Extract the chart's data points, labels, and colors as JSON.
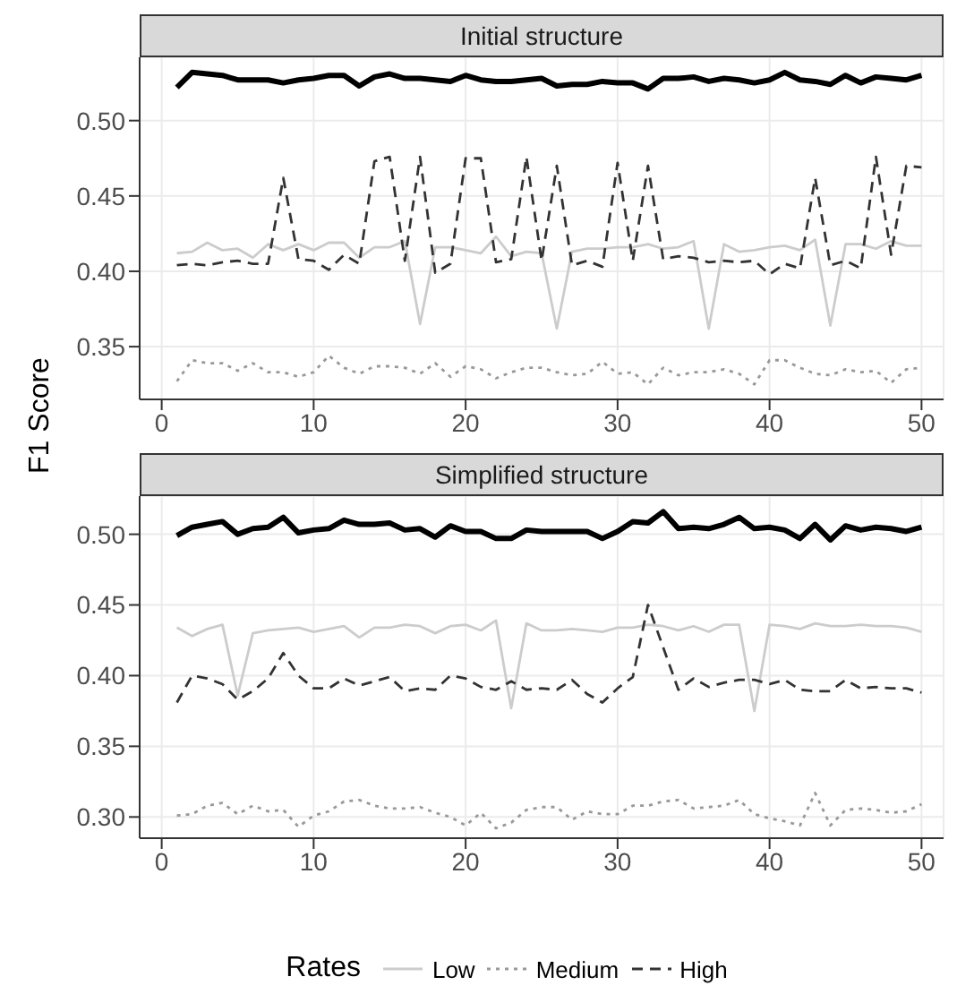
{
  "chart_data": [
    {
      "type": "line",
      "title": "Initial structure",
      "ylabel": "F1 Score",
      "x": [
        1,
        2,
        3,
        4,
        5,
        6,
        7,
        8,
        9,
        10,
        11,
        12,
        13,
        14,
        15,
        16,
        17,
        18,
        19,
        20,
        21,
        22,
        23,
        24,
        25,
        26,
        27,
        28,
        29,
        30,
        31,
        32,
        33,
        34,
        35,
        36,
        37,
        38,
        39,
        40,
        41,
        42,
        43,
        44,
        45,
        46,
        47,
        48,
        49,
        50
      ],
      "xlim": [
        -1.45,
        51.45
      ],
      "xticks": [
        0,
        10,
        20,
        30,
        40,
        50
      ],
      "ylim": [
        0.315,
        0.542
      ],
      "yticks": [
        {
          "value": 0.35,
          "label": "0.35"
        },
        {
          "value": 0.4,
          "label": "0.40"
        },
        {
          "value": 0.45,
          "label": "0.45"
        },
        {
          "value": 0.5,
          "label": "0.50"
        }
      ],
      "grid": true,
      "legend": false,
      "series": [
        {
          "color": "#000000",
          "line_style": "solid",
          "values": [
            0.522,
            0.532,
            0.531,
            0.53,
            0.527,
            0.527,
            0.527,
            0.525,
            0.527,
            0.528,
            0.53,
            0.53,
            0.523,
            0.529,
            0.531,
            0.528,
            0.528,
            0.527,
            0.526,
            0.53,
            0.527,
            0.526,
            0.526,
            0.527,
            0.528,
            0.523,
            0.524,
            0.524,
            0.526,
            0.525,
            0.525,
            0.521,
            0.528,
            0.528,
            0.529,
            0.526,
            0.528,
            0.527,
            0.525,
            0.527,
            0.532,
            0.527,
            0.526,
            0.524,
            0.53,
            0.525,
            0.529,
            0.528,
            0.527,
            0.53
          ]
        },
        {
          "color": "#cccccc",
          "line_style": "solid",
          "values": [
            0.412,
            0.413,
            0.419,
            0.414,
            0.415,
            0.409,
            0.418,
            0.414,
            0.418,
            0.414,
            0.419,
            0.419,
            0.409,
            0.416,
            0.416,
            0.42,
            0.365,
            0.416,
            0.416,
            0.414,
            0.412,
            0.423,
            0.41,
            0.413,
            0.412,
            0.362,
            0.413,
            0.415,
            0.415,
            0.416,
            0.416,
            0.418,
            0.415,
            0.416,
            0.42,
            0.362,
            0.418,
            0.413,
            0.414,
            0.416,
            0.417,
            0.414,
            0.421,
            0.364,
            0.418,
            0.418,
            0.415,
            0.42,
            0.417,
            0.417
          ]
        },
        {
          "color": "#999999",
          "line_style": "dotted",
          "values": [
            0.327,
            0.341,
            0.339,
            0.339,
            0.334,
            0.339,
            0.333,
            0.333,
            0.33,
            0.333,
            0.344,
            0.336,
            0.332,
            0.337,
            0.337,
            0.336,
            0.332,
            0.339,
            0.33,
            0.337,
            0.335,
            0.329,
            0.333,
            0.336,
            0.336,
            0.333,
            0.331,
            0.332,
            0.34,
            0.332,
            0.333,
            0.325,
            0.336,
            0.331,
            0.333,
            0.333,
            0.335,
            0.332,
            0.325,
            0.341,
            0.341,
            0.336,
            0.332,
            0.331,
            0.335,
            0.333,
            0.334,
            0.326,
            0.335,
            0.336
          ]
        },
        {
          "color": "#333333",
          "line_style": "dashed",
          "values": [
            0.404,
            0.405,
            0.404,
            0.406,
            0.407,
            0.405,
            0.405,
            0.462,
            0.408,
            0.407,
            0.401,
            0.411,
            0.405,
            0.473,
            0.476,
            0.407,
            0.476,
            0.399,
            0.405,
            0.475,
            0.475,
            0.406,
            0.408,
            0.476,
            0.407,
            0.47,
            0.404,
            0.407,
            0.403,
            0.472,
            0.407,
            0.47,
            0.408,
            0.41,
            0.409,
            0.406,
            0.407,
            0.406,
            0.407,
            0.398,
            0.405,
            0.402,
            0.462,
            0.404,
            0.407,
            0.402,
            0.476,
            0.411,
            0.47,
            0.469
          ]
        }
      ]
    },
    {
      "type": "line",
      "title": "Simplified structure",
      "legend_title": "Rates",
      "x": [
        1,
        2,
        3,
        4,
        5,
        6,
        7,
        8,
        9,
        10,
        11,
        12,
        13,
        14,
        15,
        16,
        17,
        18,
        19,
        20,
        21,
        22,
        23,
        24,
        25,
        26,
        27,
        28,
        29,
        30,
        31,
        32,
        33,
        34,
        35,
        36,
        37,
        38,
        39,
        40,
        41,
        42,
        43,
        44,
        45,
        46,
        47,
        48,
        49,
        50
      ],
      "xlim": [
        -1.45,
        51.45
      ],
      "xticks": [
        0,
        10,
        20,
        30,
        40,
        50
      ],
      "ylim": [
        0.285,
        0.527
      ],
      "yticks": [
        {
          "value": 0.3,
          "label": "0.30"
        },
        {
          "value": 0.35,
          "label": "0.35"
        },
        {
          "value": 0.4,
          "label": "0.40"
        },
        {
          "value": 0.45,
          "label": "0.45"
        },
        {
          "value": 0.5,
          "label": "0.50"
        }
      ],
      "grid": true,
      "legend": "bottom",
      "series": [
        {
          "color": "#000000",
          "line_style": "solid",
          "values": [
            0.499,
            0.505,
            0.507,
            0.509,
            0.5,
            0.504,
            0.505,
            0.512,
            0.501,
            0.503,
            0.504,
            0.51,
            0.507,
            0.507,
            0.508,
            0.503,
            0.504,
            0.498,
            0.506,
            0.502,
            0.502,
            0.497,
            0.497,
            0.503,
            0.502,
            0.502,
            0.502,
            0.502,
            0.497,
            0.502,
            0.509,
            0.508,
            0.516,
            0.504,
            0.505,
            0.504,
            0.507,
            0.512,
            0.504,
            0.505,
            0.503,
            0.497,
            0.507,
            0.496,
            0.506,
            0.503,
            0.505,
            0.504,
            0.502,
            0.505
          ]
        },
        {
          "name": "Low",
          "color": "#cccccc",
          "line_style": "solid",
          "values": [
            0.434,
            0.428,
            0.433,
            0.436,
            0.386,
            0.43,
            0.432,
            0.433,
            0.434,
            0.431,
            0.433,
            0.435,
            0.427,
            0.434,
            0.434,
            0.436,
            0.435,
            0.43,
            0.435,
            0.436,
            0.432,
            0.439,
            0.377,
            0.437,
            0.432,
            0.432,
            0.433,
            0.432,
            0.431,
            0.434,
            0.434,
            0.436,
            0.435,
            0.432,
            0.435,
            0.431,
            0.436,
            0.436,
            0.375,
            0.436,
            0.435,
            0.433,
            0.437,
            0.435,
            0.435,
            0.436,
            0.435,
            0.435,
            0.434,
            0.431
          ]
        },
        {
          "name": "Medium",
          "color": "#999999",
          "line_style": "dotted",
          "values": [
            0.301,
            0.302,
            0.308,
            0.31,
            0.302,
            0.308,
            0.304,
            0.305,
            0.293,
            0.301,
            0.304,
            0.311,
            0.312,
            0.308,
            0.306,
            0.306,
            0.307,
            0.303,
            0.3,
            0.294,
            0.303,
            0.292,
            0.296,
            0.305,
            0.307,
            0.307,
            0.298,
            0.304,
            0.302,
            0.302,
            0.308,
            0.308,
            0.311,
            0.312,
            0.306,
            0.307,
            0.308,
            0.312,
            0.302,
            0.299,
            0.297,
            0.294,
            0.317,
            0.294,
            0.305,
            0.306,
            0.305,
            0.303,
            0.304,
            0.309
          ]
        },
        {
          "name": "High",
          "color": "#333333",
          "line_style": "dashed",
          "values": [
            0.381,
            0.4,
            0.398,
            0.394,
            0.383,
            0.389,
            0.398,
            0.416,
            0.4,
            0.391,
            0.391,
            0.398,
            0.393,
            0.396,
            0.399,
            0.389,
            0.391,
            0.39,
            0.4,
            0.398,
            0.392,
            0.39,
            0.396,
            0.39,
            0.391,
            0.39,
            0.397,
            0.387,
            0.381,
            0.391,
            0.399,
            0.45,
            0.42,
            0.39,
            0.398,
            0.392,
            0.395,
            0.397,
            0.397,
            0.394,
            0.397,
            0.39,
            0.389,
            0.389,
            0.397,
            0.391,
            0.392,
            0.391,
            0.391,
            0.388
          ]
        }
      ]
    }
  ]
}
